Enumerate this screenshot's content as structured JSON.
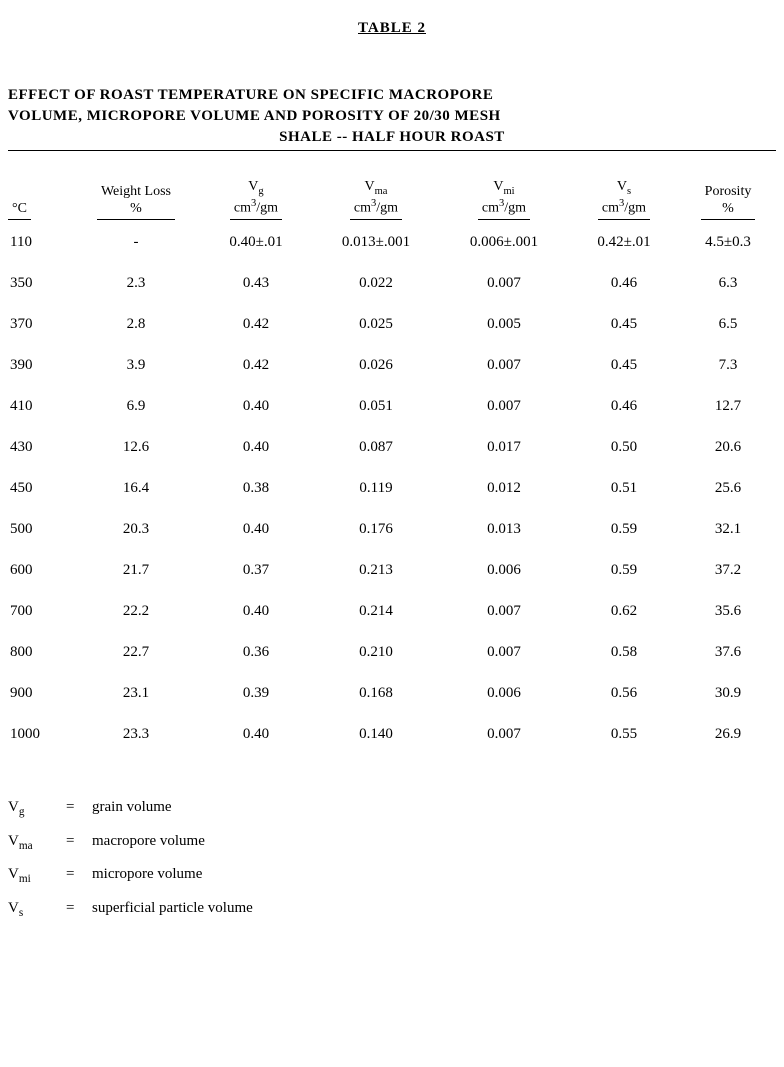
{
  "table_label": "TABLE 2",
  "title": {
    "line1": "EFFECT OF ROAST TEMPERATURE ON SPECIFIC MACROPORE",
    "line2": "VOLUME, MICROPORE VOLUME AND POROSITY OF 20/30 MESH",
    "line3": "SHALE -- HALF HOUR ROAST"
  },
  "columns": {
    "temp": {
      "sym_pre": "°",
      "sym": "C",
      "unit": ""
    },
    "wloss": {
      "label": "Weight Loss",
      "unit": "%"
    },
    "vg": {
      "sym": "V",
      "sub": "g",
      "unit": "cm",
      "unit_sup": "3",
      "unit2": "/gm"
    },
    "vma": {
      "sym": "V",
      "sub": "ma",
      "unit": "cm",
      "unit_sup": "3",
      "unit2": "/gm"
    },
    "vmi": {
      "sym": "V",
      "sub": "mi",
      "unit": "cm",
      "unit_sup": "3",
      "unit2": "/gm"
    },
    "vs": {
      "sym": "V",
      "sub": "s",
      "unit": "cm",
      "unit_sup": "3",
      "unit2": "/gm"
    },
    "porosity": {
      "label": "Porosity",
      "unit": "%"
    }
  },
  "rows": [
    {
      "temp": "110",
      "wloss": "-",
      "vg": "0.40±.01",
      "vma": "0.013±.001",
      "vmi": "0.006±.001",
      "vs": "0.42±.01",
      "porosity": "4.5±0.3"
    },
    {
      "temp": "350",
      "wloss": "2.3",
      "vg": "0.43",
      "vma": "0.022",
      "vmi": "0.007",
      "vs": "0.46",
      "porosity": "6.3"
    },
    {
      "temp": "370",
      "wloss": "2.8",
      "vg": "0.42",
      "vma": "0.025",
      "vmi": "0.005",
      "vs": "0.45",
      "porosity": "6.5"
    },
    {
      "temp": "390",
      "wloss": "3.9",
      "vg": "0.42",
      "vma": "0.026",
      "vmi": "0.007",
      "vs": "0.45",
      "porosity": "7.3"
    },
    {
      "temp": "410",
      "wloss": "6.9",
      "vg": "0.40",
      "vma": "0.051",
      "vmi": "0.007",
      "vs": "0.46",
      "porosity": "12.7"
    },
    {
      "temp": "430",
      "wloss": "12.6",
      "vg": "0.40",
      "vma": "0.087",
      "vmi": "0.017",
      "vs": "0.50",
      "porosity": "20.6"
    },
    {
      "temp": "450",
      "wloss": "16.4",
      "vg": "0.38",
      "vma": "0.119",
      "vmi": "0.012",
      "vs": "0.51",
      "porosity": "25.6"
    },
    {
      "temp": "500",
      "wloss": "20.3",
      "vg": "0.40",
      "vma": "0.176",
      "vmi": "0.013",
      "vs": "0.59",
      "porosity": "32.1"
    },
    {
      "temp": "600",
      "wloss": "21.7",
      "vg": "0.37",
      "vma": "0.213",
      "vmi": "0.006",
      "vs": "0.59",
      "porosity": "37.2"
    },
    {
      "temp": "700",
      "wloss": "22.2",
      "vg": "0.40",
      "vma": "0.214",
      "vmi": "0.007",
      "vs": "0.62",
      "porosity": "35.6"
    },
    {
      "temp": "800",
      "wloss": "22.7",
      "vg": "0.36",
      "vma": "0.210",
      "vmi": "0.007",
      "vs": "0.58",
      "porosity": "37.6"
    },
    {
      "temp": "900",
      "wloss": "23.1",
      "vg": "0.39",
      "vma": "0.168",
      "vmi": "0.006",
      "vs": "0.56",
      "porosity": "30.9"
    },
    {
      "temp": "1000",
      "wloss": "23.3",
      "vg": "0.40",
      "vma": "0.140",
      "vmi": "0.007",
      "vs": "0.55",
      "porosity": "26.9"
    }
  ],
  "legend": [
    {
      "sym": "V",
      "sub": "g",
      "def": "grain volume"
    },
    {
      "sym": "V",
      "sub": "ma",
      "def": "macropore volume"
    },
    {
      "sym": "V",
      "sub": "mi",
      "def": "micropore volume"
    },
    {
      "sym": "V",
      "sub": "s",
      "def": "superficial particle volume"
    }
  ],
  "eq": "="
}
